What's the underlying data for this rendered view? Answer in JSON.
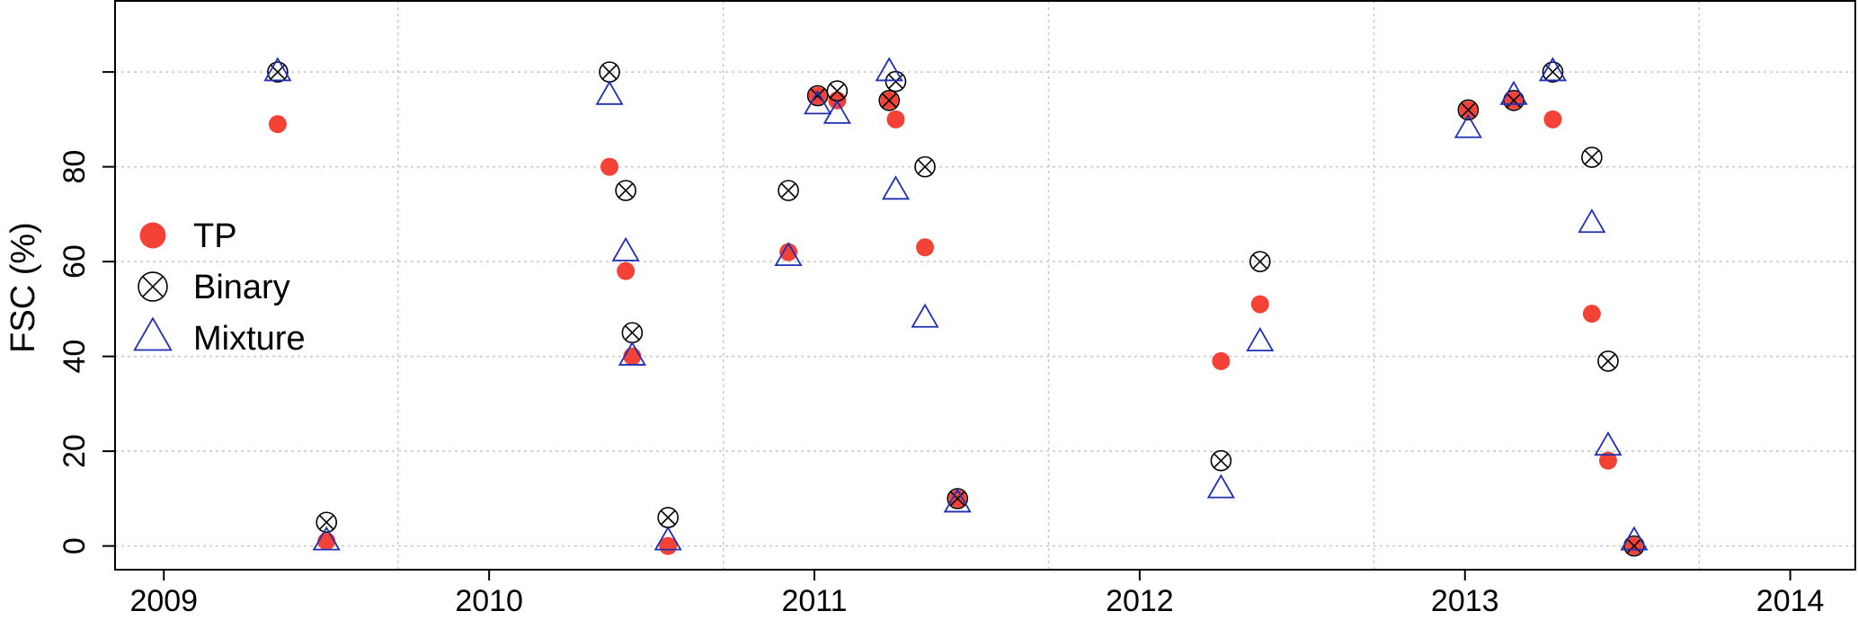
{
  "chart_data": {
    "type": "scatter",
    "title": "",
    "xlabel": "",
    "ylabel": "FSC (%)",
    "xlim": [
      2008.85,
      2014.2
    ],
    "ylim": [
      -5,
      115
    ],
    "x_ticks": [
      2009,
      2010,
      2011,
      2012,
      2013,
      2014
    ],
    "x_tick_labels": [
      "2009",
      "2010",
      "2011",
      "2012",
      "2013",
      "2014"
    ],
    "y_ticks": [
      0,
      20,
      40,
      60,
      80
    ],
    "y_tick_labels": [
      "0",
      "20",
      "40",
      "60",
      "80"
    ],
    "x_grid": [
      2009.72,
      2010.72,
      2011.72,
      2012.72,
      2013.72
    ],
    "y_grid": [
      0,
      20,
      40,
      60,
      80,
      100
    ],
    "grid": true,
    "legend_position": "left",
    "series": [
      {
        "name": "TP",
        "marker": "filled-circle",
        "color": "#f44336",
        "points": [
          [
            2009.35,
            89
          ],
          [
            2009.5,
            1
          ],
          [
            2010.37,
            80
          ],
          [
            2010.42,
            58
          ],
          [
            2010.44,
            40
          ],
          [
            2010.55,
            0
          ],
          [
            2010.92,
            62
          ],
          [
            2011.01,
            95
          ],
          [
            2011.07,
            94
          ],
          [
            2011.23,
            94
          ],
          [
            2011.25,
            90
          ],
          [
            2011.34,
            63
          ],
          [
            2011.44,
            10
          ],
          [
            2012.25,
            39
          ],
          [
            2012.37,
            51
          ],
          [
            2013.01,
            92
          ],
          [
            2013.15,
            94
          ],
          [
            2013.27,
            90
          ],
          [
            2013.39,
            49
          ],
          [
            2013.44,
            18
          ],
          [
            2013.52,
            0
          ]
        ]
      },
      {
        "name": "Binary",
        "marker": "circle-x",
        "color": "#000000",
        "points": [
          [
            2009.35,
            100
          ],
          [
            2009.5,
            5
          ],
          [
            2010.37,
            100
          ],
          [
            2010.42,
            75
          ],
          [
            2010.44,
            45
          ],
          [
            2010.55,
            6
          ],
          [
            2010.92,
            75
          ],
          [
            2011.01,
            95
          ],
          [
            2011.07,
            96
          ],
          [
            2011.23,
            94
          ],
          [
            2011.25,
            98
          ],
          [
            2011.34,
            80
          ],
          [
            2011.44,
            10
          ],
          [
            2012.25,
            18
          ],
          [
            2012.37,
            60
          ],
          [
            2013.01,
            92
          ],
          [
            2013.15,
            94
          ],
          [
            2013.27,
            100
          ],
          [
            2013.39,
            82
          ],
          [
            2013.44,
            39
          ],
          [
            2013.52,
            0
          ]
        ]
      },
      {
        "name": "Mixture",
        "marker": "open-triangle",
        "color": "#1f2fb3",
        "points": [
          [
            2009.35,
            100
          ],
          [
            2009.5,
            1
          ],
          [
            2010.37,
            95
          ],
          [
            2010.42,
            62
          ],
          [
            2010.44,
            40
          ],
          [
            2010.55,
            1
          ],
          [
            2010.92,
            61
          ],
          [
            2011.01,
            93
          ],
          [
            2011.07,
            91
          ],
          [
            2011.23,
            100
          ],
          [
            2011.25,
            75
          ],
          [
            2011.34,
            48
          ],
          [
            2011.44,
            9
          ],
          [
            2012.25,
            12
          ],
          [
            2012.37,
            43
          ],
          [
            2013.01,
            88
          ],
          [
            2013.15,
            95
          ],
          [
            2013.27,
            100
          ],
          [
            2013.39,
            68
          ],
          [
            2013.44,
            21
          ],
          [
            2013.52,
            1
          ]
        ]
      }
    ]
  }
}
